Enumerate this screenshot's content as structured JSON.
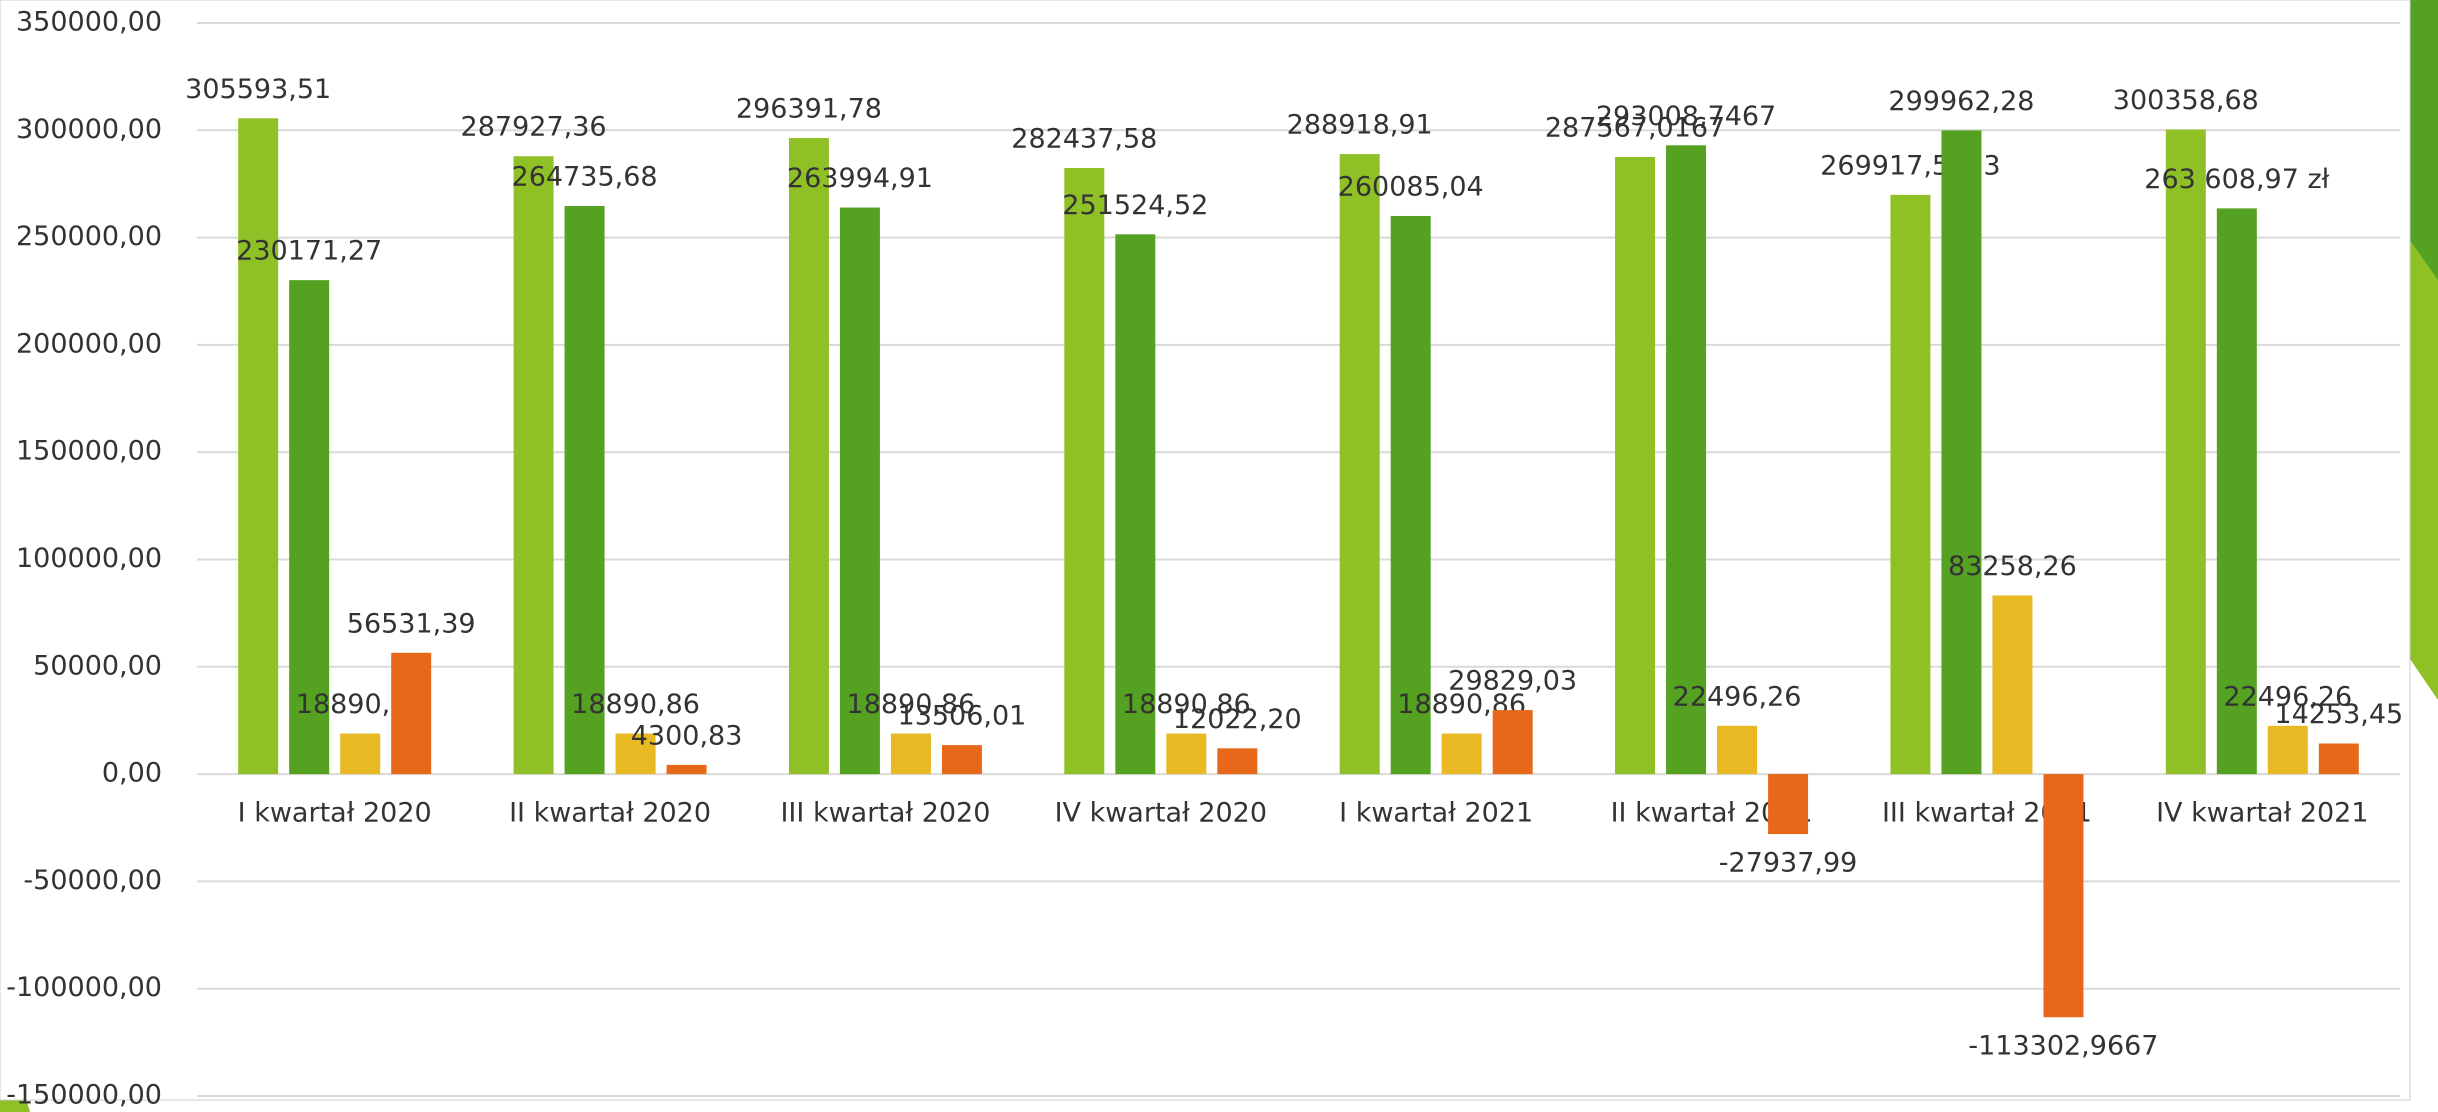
{
  "chart_data": {
    "type": "bar",
    "categories": [
      "I kwartał 2020",
      "II kwartał 2020",
      "III kwartał 2020",
      "IV kwartał 2020",
      "I kwartał 2021",
      "II kwartał 2021",
      "III kwartał 2021",
      "IV kwartał 2021"
    ],
    "series": [
      {
        "color": "#8fc127",
        "values": [
          305593.51,
          287927.36,
          296391.78,
          282437.58,
          288918.91,
          287567.0167,
          269917.5733,
          300358.68
        ],
        "value_labels": [
          "305593,51",
          "287927,36",
          "296391,78",
          "282437,58",
          "288918,91",
          "287567,0167",
          "269917,5733",
          "300358,68"
        ]
      },
      {
        "color": "#55a222",
        "values": [
          230171.27,
          264735.68,
          263994.91,
          251524.52,
          260085.04,
          293008.7467,
          299962.28,
          263608.97
        ],
        "value_labels": [
          "230171,27",
          "264735,68",
          "263994,91",
          "251524,52",
          "260085,04",
          "293008,7467",
          "299962,28",
          "263 608,97 zł"
        ]
      },
      {
        "color": "#e8b923",
        "values": [
          18890.86,
          18890.86,
          18890.86,
          18890.86,
          18890.86,
          22496.26,
          83258.26,
          22496.26
        ],
        "value_labels": [
          "18890,86",
          "18890,86",
          "18890,86",
          "18890,86",
          "18890,86",
          "22496,26",
          "83258,26",
          "22496,26"
        ]
      },
      {
        "color": "#e8681a",
        "values": [
          56531.39,
          4300.83,
          13506.01,
          12022.2,
          29829.03,
          -27937.99,
          -113302.9667,
          14253.45
        ],
        "value_labels": [
          "56531,39",
          "4300,83",
          "13506,01",
          "12022,20",
          "29829,03",
          "-27937,99",
          "-113302,9667",
          "14253,45"
        ]
      }
    ],
    "ylim": [
      -150000,
      350000
    ],
    "yticks": [
      {
        "value": -150000,
        "label": "-150000,00"
      },
      {
        "value": -100000,
        "label": "-100000,00"
      },
      {
        "value": -50000,
        "label": "-50000,00"
      },
      {
        "value": 0,
        "label": "0,00"
      },
      {
        "value": 50000,
        "label": "50000,00"
      },
      {
        "value": 100000,
        "label": "100000,00"
      },
      {
        "value": 150000,
        "label": "150000,00"
      },
      {
        "value": 200000,
        "label": "200000,00"
      },
      {
        "value": 250000,
        "label": "250000,00"
      },
      {
        "value": 300000,
        "label": "300000,00"
      },
      {
        "value": 350000,
        "label": "350000,00"
      }
    ],
    "grid": true
  }
}
